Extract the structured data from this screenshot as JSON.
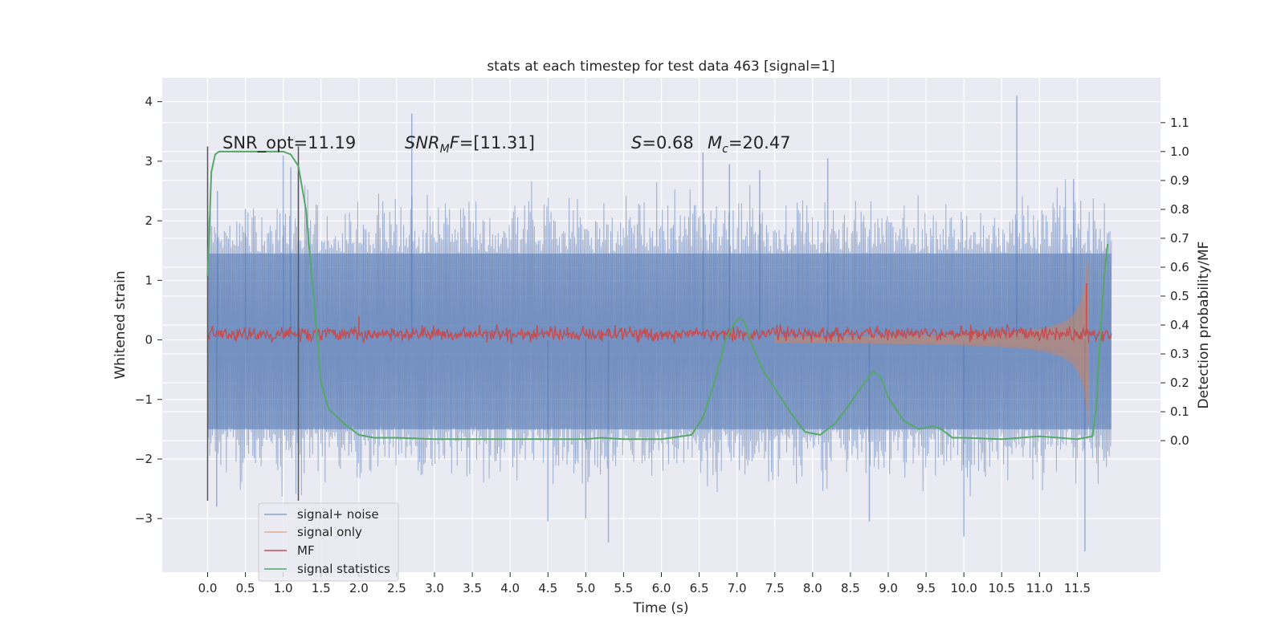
{
  "chart_data": {
    "type": "line",
    "title": "stats at each timestep for test data 463 [signal=1]",
    "xlabel": "Time (s)",
    "ylabel": "Whitened strain",
    "ylabel_right": "Detection probability/MF",
    "xlim": [
      -0.6,
      12.6
    ],
    "ylim": [
      -3.9,
      4.4
    ],
    "ylim_right": [
      -0.455,
      1.255
    ],
    "x_ticks": [
      0.0,
      0.5,
      1.0,
      1.5,
      2.0,
      2.5,
      3.0,
      3.5,
      4.0,
      4.5,
      5.0,
      5.5,
      6.0,
      6.5,
      7.0,
      7.5,
      8.0,
      8.5,
      9.0,
      9.5,
      10.0,
      10.5,
      11.0,
      11.5
    ],
    "x_tick_labels": [
      "0.0",
      "0.5",
      "1.0",
      "1.5",
      "2.0",
      "2.5",
      "3.0",
      "3.5",
      "4.0",
      "4.5",
      "5.0",
      "5.5",
      "6.0",
      "6.5",
      "7.0",
      "7.5",
      "8.0",
      "8.5",
      "9.0",
      "9.5",
      "10.0",
      "10.5",
      "11.0",
      "11.5"
    ],
    "y_ticks": [
      -3,
      -2,
      -1,
      0,
      1,
      2,
      3,
      4
    ],
    "y_tick_labels": [
      "−3",
      "−2",
      "−1",
      "0",
      "1",
      "2",
      "3",
      "4"
    ],
    "y_ticks_right": [
      0.0,
      0.1,
      0.2,
      0.3,
      0.4,
      0.5,
      0.6,
      0.7,
      0.8,
      0.9,
      1.0,
      1.1
    ],
    "y_tick_labels_right": [
      "0.0",
      "0.1",
      "0.2",
      "0.3",
      "0.4",
      "0.5",
      "0.6",
      "0.7",
      "0.8",
      "0.9",
      "1.0",
      "1.1"
    ],
    "grid": true,
    "legend_position": "lower-left",
    "annotations": {
      "snr_opt": "SNR_opt=11.19",
      "snr_mf": "=[11.31]",
      "s_value": "=0.68",
      "mc_value": "=20.47"
    },
    "vertical_markers": [
      {
        "x": 0.0,
        "y_range": [
          -2.7,
          3.25
        ]
      },
      {
        "x": 1.2,
        "y_range": [
          -2.7,
          3.25
        ]
      }
    ],
    "series": [
      {
        "name": "signal+ noise",
        "axis": "left",
        "color": "#4c72b0",
        "alpha": 0.5,
        "kind": "noise",
        "x_range": [
          0.0,
          11.95
        ],
        "core_range": [
          -2.05,
          2.05
        ],
        "spikes": [
          [
            0.13,
            2.5
          ],
          [
            0.12,
            -2.8
          ],
          [
            0.5,
            2.2
          ],
          [
            1.0,
            3.1
          ],
          [
            1.1,
            2.9
          ],
          [
            1.2,
            2.8
          ],
          [
            2.7,
            3.8
          ],
          [
            4.5,
            -3.05
          ],
          [
            5.0,
            -3.0
          ],
          [
            5.3,
            -3.4
          ],
          [
            6.55,
            3.15
          ],
          [
            6.9,
            2.95
          ],
          [
            7.3,
            2.85
          ],
          [
            8.2,
            3.05
          ],
          [
            8.75,
            -3.05
          ],
          [
            10.0,
            -3.3
          ],
          [
            10.7,
            4.1
          ],
          [
            11.45,
            2.7
          ],
          [
            11.6,
            -3.55
          ]
        ]
      },
      {
        "name": "signal only",
        "axis": "left",
        "color": "#dd8452",
        "alpha": 0.5,
        "kind": "chirp",
        "x_range": [
          7.5,
          11.65
        ],
        "start_amplitude": 0.02,
        "peak_amplitude": 1.8,
        "peak_time": 11.62
      },
      {
        "name": "MF",
        "axis": "left",
        "color": "#c44e52",
        "kind": "band",
        "x_range": [
          0.0,
          11.95
        ],
        "center": 0.1,
        "band": [
          -0.05,
          0.28
        ],
        "spikes": [
          [
            2.0,
            0.4
          ],
          [
            11.62,
            0.95
          ],
          [
            11.65,
            -0.05
          ]
        ]
      },
      {
        "name": "signal statistics",
        "axis": "right",
        "color": "#55a868",
        "kind": "line",
        "x": [
          0.0,
          0.05,
          0.1,
          0.15,
          0.2,
          0.3,
          0.5,
          0.8,
          1.0,
          1.1,
          1.2,
          1.3,
          1.4,
          1.5,
          1.6,
          1.8,
          2.0,
          2.2,
          2.5,
          3.0,
          3.5,
          4.0,
          4.5,
          5.0,
          5.2,
          5.5,
          6.0,
          6.4,
          6.55,
          6.7,
          6.85,
          7.0,
          7.05,
          7.1,
          7.2,
          7.35,
          7.5,
          7.7,
          7.9,
          8.1,
          8.3,
          8.5,
          8.6,
          8.8,
          8.9,
          9.0,
          9.2,
          9.4,
          9.6,
          9.7,
          9.85,
          10.0,
          10.5,
          11.0,
          11.5,
          11.7,
          11.75,
          11.8,
          11.85,
          11.9
        ],
        "values": [
          0.57,
          0.93,
          0.99,
          1.0,
          1.0,
          1.0,
          1.0,
          1.0,
          1.0,
          0.99,
          0.95,
          0.8,
          0.5,
          0.2,
          0.11,
          0.06,
          0.02,
          0.01,
          0.01,
          0.005,
          0.005,
          0.005,
          0.005,
          0.005,
          0.01,
          0.005,
          0.005,
          0.02,
          0.08,
          0.2,
          0.35,
          0.42,
          0.425,
          0.41,
          0.33,
          0.24,
          0.18,
          0.1,
          0.03,
          0.02,
          0.06,
          0.13,
          0.17,
          0.24,
          0.22,
          0.15,
          0.07,
          0.04,
          0.05,
          0.04,
          0.01,
          0.01,
          0.005,
          0.015,
          0.005,
          0.015,
          0.12,
          0.35,
          0.55,
          0.68
        ]
      }
    ]
  }
}
